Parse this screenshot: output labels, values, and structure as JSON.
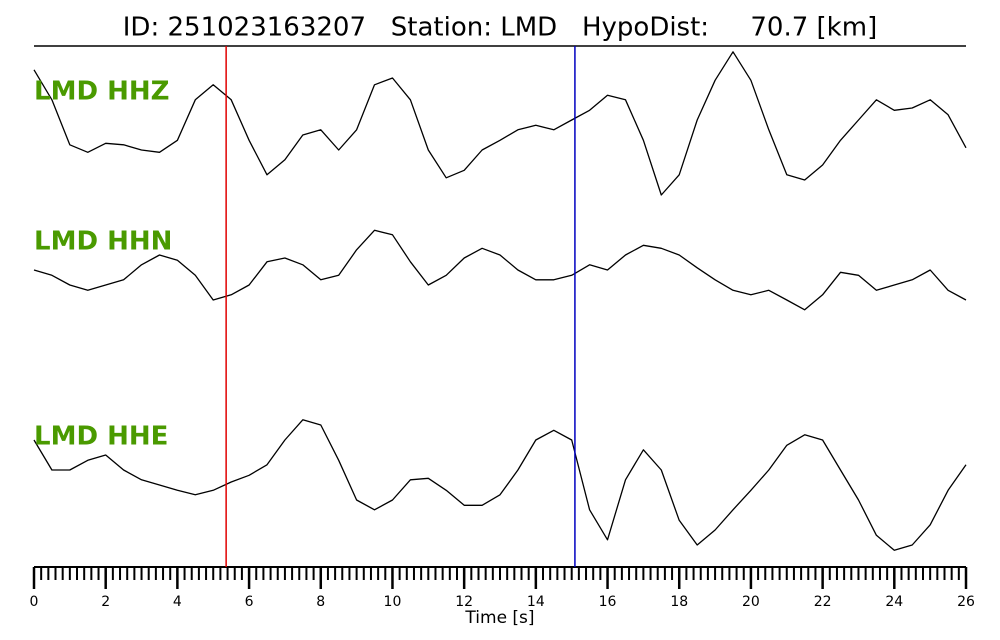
{
  "chart_data": {
    "type": "line",
    "title": "ID: 251023163207   Station: LMD   HypoDist:     70.7 [km]",
    "xlabel": "Time [s]",
    "xlim": [
      0,
      26
    ],
    "xticks": [
      0,
      2,
      4,
      6,
      8,
      10,
      12,
      14,
      16,
      18,
      20,
      22,
      24,
      26
    ],
    "xminor_step": 0.2,
    "x": [
      0,
      0.5,
      1,
      1.5,
      2,
      2.5,
      3,
      3.5,
      4,
      4.5,
      5,
      5.5,
      6,
      6.5,
      7,
      7.5,
      8,
      8.5,
      9,
      9.5,
      10,
      10.5,
      11,
      11.5,
      12,
      12.5,
      13,
      13.5,
      14,
      14.5,
      15,
      15.5,
      16,
      16.5,
      17,
      17.5,
      18,
      18.5,
      19,
      19.5,
      20,
      20.5,
      21,
      21.5,
      22,
      22.5,
      23,
      23.5,
      24,
      24.5,
      25,
      25.5,
      26
    ],
    "label_color": "#4a9a00",
    "picks": [
      {
        "x": 5.36,
        "color": "#e00000"
      },
      {
        "x": 15.09,
        "color": "#0000c0"
      }
    ],
    "series": [
      {
        "name": "LMD HHZ",
        "color": "#000000",
        "ylim": [
          -1.4,
          1.4
        ],
        "values": [
          0.67,
          0.27,
          -0.33,
          -0.43,
          -0.31,
          -0.33,
          -0.4,
          -0.43,
          -0.27,
          0.27,
          0.47,
          0.27,
          -0.27,
          -0.73,
          -0.53,
          -0.2,
          -0.13,
          -0.4,
          -0.13,
          0.47,
          0.56,
          0.27,
          -0.4,
          -0.77,
          -0.67,
          -0.4,
          -0.27,
          -0.13,
          -0.07,
          -0.13,
          0,
          0.13,
          0.33,
          0.27,
          -0.27,
          -1.0,
          -0.73,
          0,
          0.53,
          0.91,
          0.53,
          -0.13,
          -0.73,
          -0.8,
          -0.6,
          -0.27,
          0,
          0.27,
          0.13,
          0.16,
          0.27,
          0.07,
          -0.37
        ]
      },
      {
        "name": "LMD HHN",
        "color": "#000000",
        "ylim": [
          -1.4,
          1.4
        ],
        "values": [
          0,
          -0.07,
          -0.2,
          -0.27,
          -0.2,
          -0.13,
          0.07,
          0.2,
          0.13,
          -0.07,
          -0.4,
          -0.33,
          -0.2,
          0.11,
          0.16,
          0.07,
          -0.13,
          -0.07,
          0.27,
          0.53,
          0.47,
          0.11,
          -0.2,
          -0.07,
          0.16,
          0.29,
          0.2,
          0,
          -0.13,
          -0.13,
          -0.07,
          0.07,
          0,
          0.2,
          0.33,
          0.29,
          0.2,
          0.03,
          -0.13,
          -0.27,
          -0.33,
          -0.27,
          -0.4,
          -0.53,
          -0.33,
          -0.03,
          -0.07,
          -0.27,
          -0.2,
          -0.13,
          0,
          -0.27,
          -0.4
        ]
      },
      {
        "name": "LMD HHE",
        "color": "#000000",
        "ylim": [
          -1.4,
          1.4
        ],
        "values": [
          0.6,
          0.2,
          0.2,
          0.33,
          0.4,
          0.2,
          0.07,
          0,
          -0.07,
          -0.13,
          -0.07,
          0.04,
          0.13,
          0.27,
          0.6,
          0.87,
          0.8,
          0.33,
          -0.2,
          -0.33,
          -0.2,
          0.07,
          0.09,
          -0.07,
          -0.27,
          -0.27,
          -0.13,
          0.2,
          0.6,
          0.73,
          0.6,
          -0.33,
          -0.73,
          0.07,
          0.47,
          0.2,
          -0.47,
          -0.8,
          -0.6,
          -0.33,
          -0.07,
          0.2,
          0.53,
          0.67,
          0.6,
          0.2,
          -0.2,
          -0.67,
          -0.87,
          -0.8,
          -0.53,
          -0.07,
          0.27
        ]
      }
    ]
  }
}
